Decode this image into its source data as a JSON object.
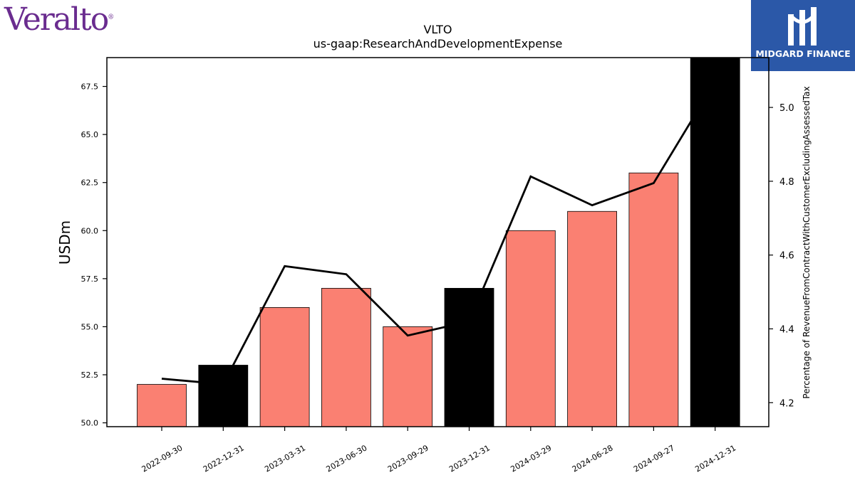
{
  "branding": {
    "left_logo": "Veralto",
    "right_logo": "MIDGARD FINANCE"
  },
  "colors": {
    "bar_regular": "#fa8072",
    "bar_annual": "#000000",
    "line": "#000000"
  },
  "chart_data": {
    "type": "bar",
    "title": "VLTO",
    "subtitle": "us-gaap:ResearchAndDevelopmentExpense",
    "ylabel": "USDm",
    "y2label": "Percentage of RevenueFromContractWithCustomerExcludingAssessedTax",
    "categories": [
      "2022-09-30",
      "2022-12-31",
      "2023-03-31",
      "2023-06-30",
      "2023-09-29",
      "2023-12-31",
      "2024-03-29",
      "2024-06-28",
      "2024-09-27",
      "2024-12-31"
    ],
    "series": [
      {
        "type": "bar",
        "axis": "left",
        "values": [
          52,
          53,
          56,
          57,
          55,
          57,
          60,
          61,
          63,
          69
        ],
        "bar_colors": [
          "#fa8072",
          "#000000",
          "#fa8072",
          "#fa8072",
          "#fa8072",
          "#000000",
          "#fa8072",
          "#fa8072",
          "#fa8072",
          "#000000"
        ]
      },
      {
        "type": "line",
        "axis": "right",
        "values": [
          4.265,
          4.25,
          4.57,
          4.548,
          4.382,
          4.42,
          4.813,
          4.735,
          4.795,
          5.07
        ]
      }
    ],
    "ylim": [
      49.8,
      69
    ],
    "yticks": [
      "50.0",
      "52.5",
      "55.0",
      "57.5",
      "60.0",
      "62.5",
      "65.0",
      "67.5"
    ],
    "y2lim": [
      4.135,
      5.135
    ],
    "y2ticks": [
      "4.2",
      "4.4",
      "4.6",
      "4.8",
      "5.0"
    ]
  }
}
